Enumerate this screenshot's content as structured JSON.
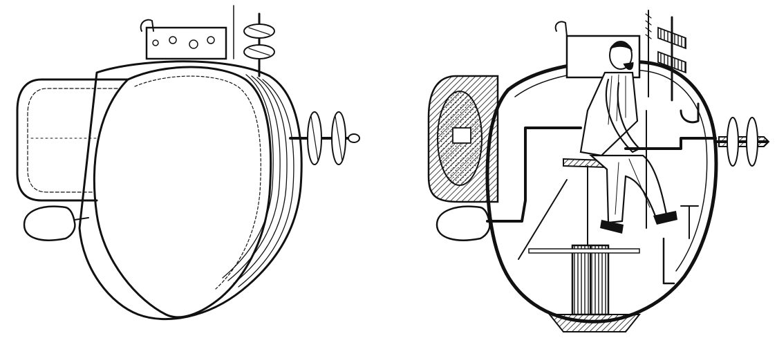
{
  "figure": {
    "panels": [
      {
        "id": "exterior",
        "view": "exterior"
      },
      {
        "id": "section",
        "view": "cutaway"
      }
    ],
    "ink_color": "#111111",
    "paper_color": "#ffffff"
  }
}
